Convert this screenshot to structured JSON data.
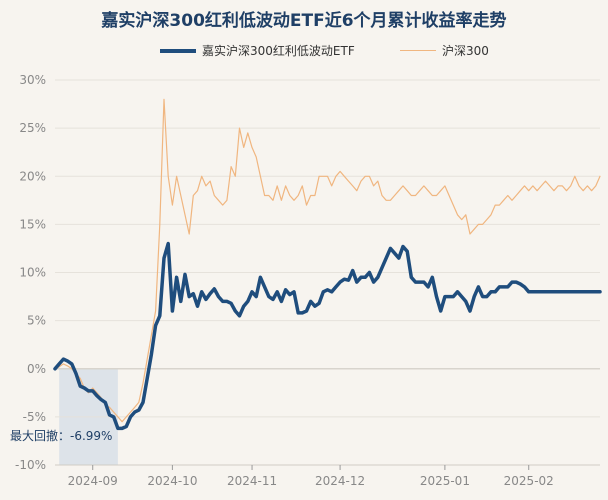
{
  "chart_data": {
    "type": "line",
    "title": "嘉实沪深300红利低波动ETF近6个月累计收益率走势",
    "ylim": [
      -10,
      30
    ],
    "yticks": [
      "30%",
      "25%",
      "20%",
      "15%",
      "10%",
      "5%",
      "0%",
      "-5%",
      "-10%"
    ],
    "ytick_values": [
      30,
      25,
      20,
      15,
      10,
      5,
      0,
      -5,
      -10
    ],
    "xticks": [
      "2024-09",
      "2024-10",
      "2024-11",
      "2024-12",
      "2025-01",
      "2025-02"
    ],
    "xtick_positions": [
      9,
      28,
      47,
      68,
      93,
      113
    ],
    "n_points": 131,
    "grid": true,
    "legend_position": "top-center",
    "max_drawdown_label": "最大回撤：-6.99%",
    "max_drawdown_range": [
      1,
      15
    ],
    "series": [
      {
        "name": "嘉实沪深300红利低波动ETF",
        "color": "#1f4d7d",
        "values": [
          0.0,
          0.5,
          1.0,
          0.8,
          0.5,
          -0.5,
          -1.8,
          -2.0,
          -2.3,
          -2.3,
          -2.8,
          -3.2,
          -3.5,
          -4.8,
          -5.0,
          -6.2,
          -6.2,
          -6.0,
          -5.0,
          -4.5,
          -4.3,
          -3.5,
          -1.0,
          1.5,
          4.5,
          5.5,
          11.5,
          13.0,
          6.0,
          9.5,
          7.0,
          9.8,
          7.5,
          7.8,
          6.5,
          8.0,
          7.2,
          7.8,
          8.3,
          7.5,
          7.0,
          7.0,
          6.8,
          6.0,
          5.5,
          6.5,
          7.0,
          8.0,
          7.5,
          9.5,
          8.5,
          7.5,
          7.2,
          8.0,
          7.0,
          8.2,
          7.7,
          8.0,
          5.8,
          5.8,
          6.0,
          7.0,
          6.5,
          6.8,
          8.0,
          8.2,
          8.0,
          8.5,
          9.0,
          9.3,
          9.2,
          10.2,
          9.0,
          9.5,
          9.5,
          10.0,
          9.0,
          9.5,
          10.5,
          11.5,
          12.5,
          12.0,
          11.5,
          12.7,
          12.2,
          9.5,
          9.0,
          9.0,
          9.0,
          8.5,
          9.5,
          7.5,
          6.0,
          7.5,
          7.5,
          7.5,
          8.0,
          7.5,
          7.0,
          6.0,
          7.5,
          8.5,
          7.5,
          7.5,
          8.0,
          8.0,
          8.5,
          8.5,
          8.5,
          9.0,
          9.0,
          8.8,
          8.5,
          8.0,
          8.0,
          8.0,
          8.0,
          8.0,
          8.0,
          8.0,
          8.0,
          8.0,
          8.0,
          8.0,
          8.0,
          8.0,
          8.0,
          8.0,
          8.0,
          8.0,
          8.0
        ]
      },
      {
        "name": "沪深300",
        "color": "#f0b680",
        "values": [
          0.0,
          0.2,
          0.5,
          0.3,
          0.0,
          -0.5,
          -1.0,
          -2.0,
          -2.5,
          -2.0,
          -2.5,
          -3.0,
          -3.8,
          -4.0,
          -4.5,
          -5.0,
          -5.5,
          -5.0,
          -4.5,
          -4.0,
          -3.5,
          -1.5,
          1.0,
          3.5,
          6.0,
          15.0,
          28.0,
          20.0,
          17.0,
          20.0,
          18.0,
          16.0,
          14.0,
          18.0,
          18.5,
          20.0,
          19.0,
          19.5,
          18.0,
          17.5,
          17.0,
          17.5,
          21.0,
          20.0,
          25.0,
          23.0,
          24.5,
          23.0,
          22.0,
          20.0,
          18.0,
          18.0,
          17.5,
          19.0,
          17.5,
          19.0,
          18.0,
          17.5,
          18.0,
          19.0,
          17.0,
          18.0,
          18.0,
          20.0,
          20.0,
          20.0,
          19.0,
          20.0,
          20.5,
          20.0,
          19.5,
          19.0,
          18.5,
          19.5,
          20.0,
          20.0,
          19.0,
          19.5,
          18.0,
          17.5,
          17.5,
          18.0,
          18.5,
          19.0,
          18.5,
          18.0,
          18.0,
          18.5,
          19.0,
          18.5,
          18.0,
          18.0,
          18.5,
          19.0,
          18.0,
          17.0,
          16.0,
          15.5,
          16.0,
          14.0,
          14.5,
          15.0,
          15.0,
          15.5,
          16.0,
          17.0,
          17.0,
          17.5,
          18.0,
          17.5,
          18.0,
          18.5,
          19.0,
          18.5,
          19.0,
          18.5,
          19.0,
          19.5,
          19.0,
          18.5,
          19.0,
          19.0,
          18.5,
          19.0,
          20.0,
          19.0,
          18.5,
          19.0,
          18.5,
          19.0,
          20.0
        ]
      }
    ]
  }
}
